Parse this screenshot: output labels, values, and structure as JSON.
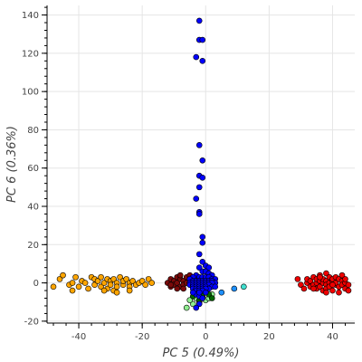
{
  "chart_data": {
    "type": "scatter",
    "title": "",
    "xlabel": "PC 5 (0.49%)",
    "ylabel": "PC 6 (0.36%)",
    "xlim": [
      -50,
      47
    ],
    "ylim": [
      -21,
      145
    ],
    "xticks": [
      -40,
      -20,
      0,
      20,
      40
    ],
    "yticks": [
      -20,
      0,
      20,
      40,
      60,
      80,
      100,
      120,
      140
    ],
    "grid": true,
    "legend": "none",
    "series": [
      {
        "color": "#ffa500",
        "points": [
          [
            -48,
            -2
          ],
          [
            -46,
            2
          ],
          [
            -45,
            4
          ],
          [
            -43,
            -1
          ],
          [
            -42,
            -4
          ],
          [
            -42,
            0
          ],
          [
            -41,
            3
          ],
          [
            -40,
            -2
          ],
          [
            -39,
            1
          ],
          [
            -38,
            0
          ],
          [
            -37,
            -3
          ],
          [
            -36,
            3
          ],
          [
            -35,
            -1
          ],
          [
            -35,
            2
          ],
          [
            -34,
            1
          ],
          [
            -33,
            -2
          ],
          [
            -33,
            3
          ],
          [
            -32,
            0
          ],
          [
            -31,
            -3
          ],
          [
            -31,
            2
          ],
          [
            -30,
            1
          ],
          [
            -30,
            -1
          ],
          [
            -29,
            -4
          ],
          [
            -29,
            2
          ],
          [
            -28,
            0
          ],
          [
            -28,
            -2
          ],
          [
            -27,
            3
          ],
          [
            -26,
            -1
          ],
          [
            -26,
            1
          ],
          [
            -25,
            2
          ],
          [
            -24,
            0
          ],
          [
            -24,
            -2
          ],
          [
            -23,
            1
          ],
          [
            -22,
            -1
          ],
          [
            -21,
            0
          ],
          [
            -20,
            1
          ],
          [
            -19,
            -1
          ],
          [
            -18,
            2
          ],
          [
            -17,
            0
          ],
          [
            -28,
            -5
          ],
          [
            -32,
            -4
          ],
          [
            -24,
            -4
          ]
        ]
      },
      {
        "color": "#7a0a0a",
        "points": [
          [
            -12,
            0
          ],
          [
            -11,
            2
          ],
          [
            -11,
            -2
          ],
          [
            -10,
            1
          ],
          [
            -10,
            -1
          ],
          [
            -9,
            3
          ],
          [
            -9,
            0
          ],
          [
            -8,
            -2
          ],
          [
            -8,
            2
          ],
          [
            -7,
            1
          ],
          [
            -7,
            -1
          ],
          [
            -6,
            0
          ],
          [
            -6,
            3
          ],
          [
            -5,
            2
          ],
          [
            -5,
            -1
          ],
          [
            -4,
            1
          ],
          [
            -4,
            -2
          ],
          [
            -3,
            0
          ],
          [
            -3,
            2
          ],
          [
            -2,
            1
          ],
          [
            -2,
            -1
          ],
          [
            -1,
            0
          ],
          [
            -1,
            2
          ],
          [
            -11,
            -1
          ],
          [
            -8,
            4
          ],
          [
            -7,
            -3
          ],
          [
            -5,
            4
          ],
          [
            -9,
            -3
          ]
        ]
      },
      {
        "color": "#90ee90",
        "points": [
          [
            -6,
            -13
          ],
          [
            -4,
            -11
          ],
          [
            -3,
            -8
          ],
          [
            -2,
            -10
          ],
          [
            -1,
            -7
          ],
          [
            0,
            -9
          ],
          [
            1,
            -8
          ],
          [
            2,
            -6
          ],
          [
            -5,
            -9
          ],
          [
            0,
            -5
          ]
        ]
      },
      {
        "color": "#006400",
        "points": [
          [
            -4,
            -7
          ],
          [
            -2,
            -9
          ],
          [
            -1,
            -6
          ],
          [
            0,
            -4
          ],
          [
            1,
            -6
          ],
          [
            -3,
            -5
          ],
          [
            2,
            -8
          ]
        ]
      },
      {
        "color": "#0000ff",
        "points": [
          [
            -2,
            137
          ],
          [
            -2,
            127
          ],
          [
            -1,
            127
          ],
          [
            -3,
            118
          ],
          [
            -1,
            116
          ],
          [
            -2,
            72
          ],
          [
            -1,
            64
          ],
          [
            -2,
            56
          ],
          [
            -1,
            55
          ],
          [
            -2,
            50
          ],
          [
            -3,
            44
          ],
          [
            -2,
            37
          ],
          [
            -2,
            36
          ],
          [
            -1,
            24
          ],
          [
            -1,
            21
          ],
          [
            -2,
            15
          ],
          [
            -1,
            11
          ],
          [
            0,
            9
          ],
          [
            1,
            8
          ],
          [
            -2,
            8
          ],
          [
            -1,
            6
          ],
          [
            0,
            6
          ],
          [
            1,
            5
          ],
          [
            2,
            4
          ],
          [
            -3,
            4
          ],
          [
            -4,
            3
          ],
          [
            -2,
            3
          ],
          [
            -1,
            3
          ],
          [
            0,
            3
          ],
          [
            1,
            3
          ],
          [
            2,
            2
          ],
          [
            3,
            2
          ],
          [
            -5,
            2
          ],
          [
            -4,
            1
          ],
          [
            -3,
            1
          ],
          [
            -2,
            1
          ],
          [
            -1,
            1
          ],
          [
            0,
            1
          ],
          [
            1,
            1
          ],
          [
            2,
            1
          ],
          [
            3,
            0
          ],
          [
            -5,
            0
          ],
          [
            -4,
            0
          ],
          [
            -3,
            0
          ],
          [
            -2,
            0
          ],
          [
            -1,
            0
          ],
          [
            0,
            0
          ],
          [
            1,
            0
          ],
          [
            2,
            0
          ],
          [
            -5,
            -1
          ],
          [
            -4,
            -1
          ],
          [
            -3,
            -1
          ],
          [
            -2,
            -1
          ],
          [
            -1,
            -1
          ],
          [
            0,
            -1
          ],
          [
            1,
            -1
          ],
          [
            2,
            -2
          ],
          [
            -4,
            -2
          ],
          [
            -3,
            -2
          ],
          [
            -2,
            -2
          ],
          [
            -1,
            -2
          ],
          [
            0,
            -2
          ],
          [
            1,
            -3
          ],
          [
            -4,
            -3
          ],
          [
            -3,
            -3
          ],
          [
            -2,
            -3
          ],
          [
            -1,
            -3
          ],
          [
            0,
            -3
          ],
          [
            -3,
            -4
          ],
          [
            -2,
            -4
          ],
          [
            -1,
            -4
          ],
          [
            0,
            -5
          ],
          [
            -3,
            -6
          ],
          [
            -2,
            -7
          ],
          [
            -2,
            -11
          ],
          [
            -3,
            -13
          ],
          [
            -4,
            -5
          ],
          [
            3,
            -2
          ],
          [
            -1,
            -8
          ],
          [
            -2,
            -5
          ]
        ]
      },
      {
        "color": "#1e90ff",
        "points": [
          [
            5,
            -5
          ],
          [
            9,
            -3
          ]
        ]
      },
      {
        "color": "#40e0d0",
        "points": [
          [
            12,
            -2
          ]
        ]
      },
      {
        "color": "#ee0000",
        "points": [
          [
            29,
            2
          ],
          [
            30,
            -1
          ],
          [
            31,
            -3
          ],
          [
            32,
            0
          ],
          [
            32,
            2
          ],
          [
            33,
            -2
          ],
          [
            33,
            1
          ],
          [
            34,
            3
          ],
          [
            34,
            -1
          ],
          [
            35,
            0
          ],
          [
            35,
            2
          ],
          [
            35,
            -3
          ],
          [
            36,
            1
          ],
          [
            36,
            -2
          ],
          [
            36,
            4
          ],
          [
            37,
            0
          ],
          [
            37,
            -4
          ],
          [
            37,
            2
          ],
          [
            38,
            1
          ],
          [
            38,
            -1
          ],
          [
            38,
            5
          ],
          [
            38,
            -3
          ],
          [
            39,
            0
          ],
          [
            39,
            3
          ],
          [
            39,
            -2
          ],
          [
            40,
            1
          ],
          [
            40,
            -4
          ],
          [
            40,
            2
          ],
          [
            41,
            -1
          ],
          [
            41,
            3
          ],
          [
            41,
            0
          ],
          [
            42,
            -2
          ],
          [
            42,
            2
          ],
          [
            42,
            -5
          ],
          [
            43,
            1
          ],
          [
            43,
            -1
          ],
          [
            43,
            4
          ],
          [
            44,
            0
          ],
          [
            44,
            -3
          ],
          [
            44,
            2
          ],
          [
            45,
            -1
          ],
          [
            45,
            -4
          ],
          [
            36,
            3
          ],
          [
            34,
            -3
          ],
          [
            40,
            -1
          ],
          [
            38,
            -5
          ]
        ]
      }
    ]
  }
}
